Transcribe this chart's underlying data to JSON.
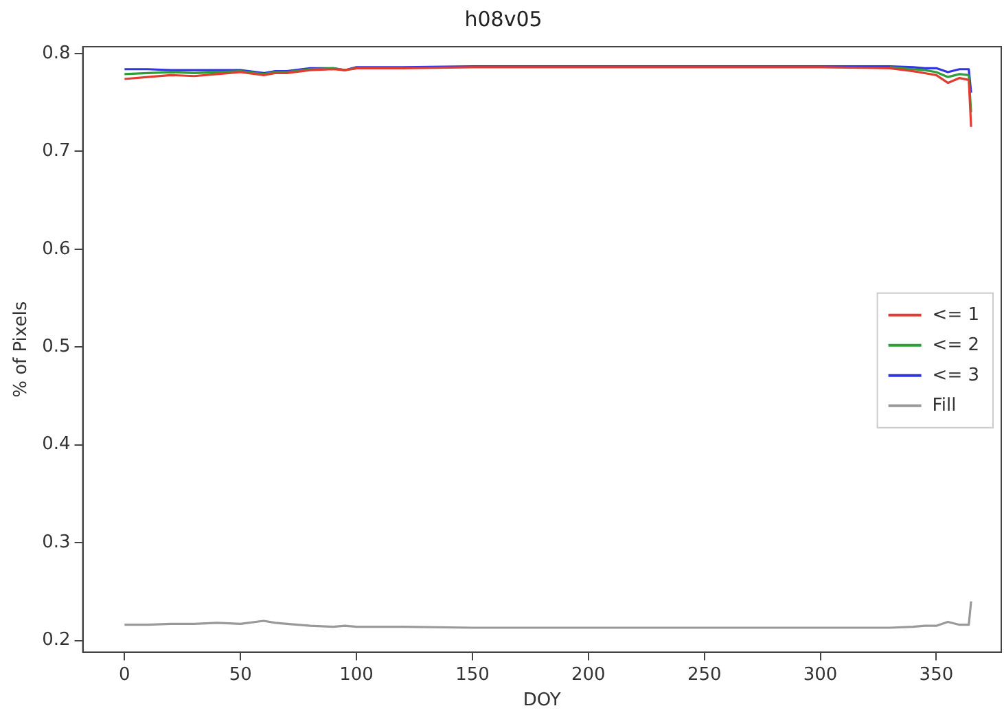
{
  "chart_data": {
    "type": "line",
    "title": "h08v05",
    "xlabel": "DOY",
    "ylabel": "% of Pixels",
    "x": [
      0,
      10,
      20,
      30,
      40,
      50,
      60,
      65,
      70,
      80,
      90,
      95,
      100,
      120,
      150,
      200,
      250,
      300,
      330,
      340,
      345,
      350,
      355,
      360,
      364,
      365
    ],
    "series": [
      {
        "name": "<= 1",
        "color": "#e03c31",
        "values": [
          0.774,
          0.776,
          0.778,
          0.777,
          0.779,
          0.781,
          0.778,
          0.78,
          0.78,
          0.783,
          0.784,
          0.783,
          0.785,
          0.785,
          0.786,
          0.786,
          0.786,
          0.786,
          0.785,
          0.782,
          0.78,
          0.778,
          0.77,
          0.775,
          0.773,
          0.725
        ]
      },
      {
        "name": "<= 2",
        "color": "#2e9e3a",
        "values": [
          0.779,
          0.78,
          0.781,
          0.78,
          0.781,
          0.782,
          0.779,
          0.781,
          0.781,
          0.784,
          0.785,
          0.783,
          0.785,
          0.785,
          null,
          null,
          null,
          null,
          0.786,
          0.784,
          0.783,
          0.781,
          0.776,
          0.779,
          0.778,
          0.74
        ]
      },
      {
        "name": "<= 3",
        "color": "#3333e6",
        "values": [
          0.784,
          0.784,
          0.783,
          0.783,
          0.783,
          0.783,
          0.78,
          0.782,
          0.782,
          0.785,
          0.785,
          0.783,
          0.786,
          0.786,
          0.787,
          0.787,
          0.787,
          0.787,
          0.787,
          0.786,
          0.785,
          0.785,
          0.781,
          0.784,
          0.784,
          0.76
        ]
      },
      {
        "name": "Fill",
        "color": "#999999",
        "values": [
          0.216,
          0.216,
          0.217,
          0.217,
          0.218,
          0.217,
          0.22,
          0.218,
          0.217,
          0.215,
          0.214,
          0.215,
          0.214,
          0.214,
          0.213,
          0.213,
          0.213,
          0.213,
          0.213,
          0.214,
          0.215,
          0.215,
          0.219,
          0.216,
          0.216,
          0.24
        ]
      }
    ],
    "xlim": [
      -18,
      378
    ],
    "xticks": [
      0,
      50,
      100,
      150,
      200,
      250,
      300,
      350
    ],
    "ylim": [
      0.188,
      0.807
    ],
    "yticks": [
      0.2,
      0.3,
      0.4,
      0.5,
      0.6,
      0.7,
      0.8
    ],
    "grid": false,
    "legend": "right",
    "marker": "none",
    "line_style": "solid"
  }
}
